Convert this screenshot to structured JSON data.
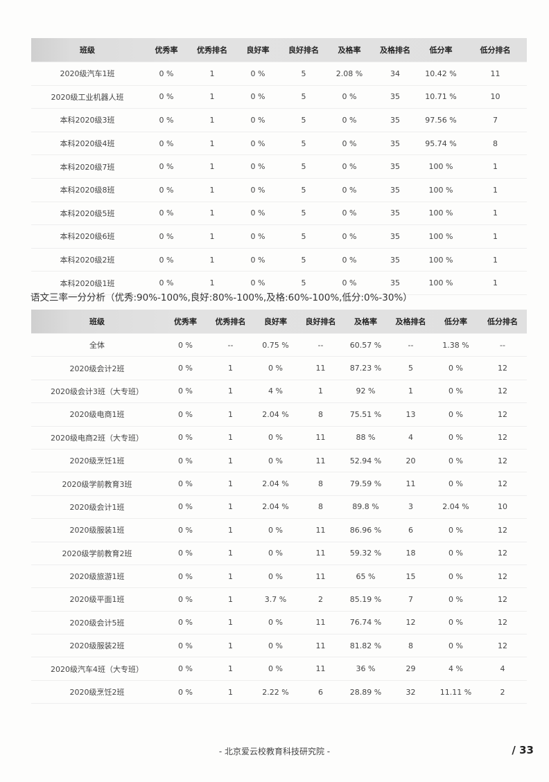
{
  "headers": [
    "班级",
    "优秀率",
    "优秀排名",
    "良好率",
    "良好排名",
    "及格率",
    "及格排名",
    "低分率",
    "低分排名"
  ],
  "table1": [
    [
      "2020级汽车1班",
      "0 %",
      "1",
      "0 %",
      "5",
      "2.08 %",
      "34",
      "10.42 %",
      "11"
    ],
    [
      "2020级工业机器人班",
      "0 %",
      "1",
      "0 %",
      "5",
      "0 %",
      "35",
      "10.71 %",
      "10"
    ],
    [
      "本科2020级3班",
      "0 %",
      "1",
      "0 %",
      "5",
      "0 %",
      "35",
      "97.56 %",
      "7"
    ],
    [
      "本科2020级4班",
      "0 %",
      "1",
      "0 %",
      "5",
      "0 %",
      "35",
      "95.74 %",
      "8"
    ],
    [
      "本科2020级7班",
      "0 %",
      "1",
      "0 %",
      "5",
      "0 %",
      "35",
      "100 %",
      "1"
    ],
    [
      "本科2020级8班",
      "0 %",
      "1",
      "0 %",
      "5",
      "0 %",
      "35",
      "100 %",
      "1"
    ],
    [
      "本科2020级5班",
      "0 %",
      "1",
      "0 %",
      "5",
      "0 %",
      "35",
      "100 %",
      "1"
    ],
    [
      "本科2020级6班",
      "0 %",
      "1",
      "0 %",
      "5",
      "0 %",
      "35",
      "100 %",
      "1"
    ],
    [
      "本科2020级2班",
      "0 %",
      "1",
      "0 %",
      "5",
      "0 %",
      "35",
      "100 %",
      "1"
    ],
    [
      "本科2020级1班",
      "0 %",
      "1",
      "0 %",
      "5",
      "0 %",
      "35",
      "100 %",
      "1"
    ]
  ],
  "section_title": "语文三率一分分析（优秀:90%-100%,良好:80%-100%,及格:60%-100%,低分:0%-30%）",
  "table2": [
    [
      "全体",
      "0 %",
      "--",
      "0.75 %",
      "--",
      "60.57 %",
      "--",
      "1.38 %",
      "--"
    ],
    [
      "2020级会计2班",
      "0 %",
      "1",
      "0 %",
      "11",
      "87.23 %",
      "5",
      "0 %",
      "12"
    ],
    [
      "2020级会计3班（大专班）",
      "0 %",
      "1",
      "4 %",
      "1",
      "92 %",
      "1",
      "0 %",
      "12"
    ],
    [
      "2020级电商1班",
      "0 %",
      "1",
      "2.04 %",
      "8",
      "75.51 %",
      "13",
      "0 %",
      "12"
    ],
    [
      "2020级电商2班（大专班）",
      "0 %",
      "1",
      "0 %",
      "11",
      "88 %",
      "4",
      "0 %",
      "12"
    ],
    [
      "2020级烹饪1班",
      "0 %",
      "1",
      "0 %",
      "11",
      "52.94 %",
      "20",
      "0 %",
      "12"
    ],
    [
      "2020级学前教育3班",
      "0 %",
      "1",
      "2.04 %",
      "8",
      "79.59 %",
      "11",
      "0 %",
      "12"
    ],
    [
      "2020级会计1班",
      "0 %",
      "1",
      "2.04 %",
      "8",
      "89.8 %",
      "3",
      "2.04 %",
      "10"
    ],
    [
      "2020级服装1班",
      "0 %",
      "1",
      "0 %",
      "11",
      "86.96 %",
      "6",
      "0 %",
      "12"
    ],
    [
      "2020级学前教育2班",
      "0 %",
      "1",
      "0 %",
      "11",
      "59.32 %",
      "18",
      "0 %",
      "12"
    ],
    [
      "2020级旅游1班",
      "0 %",
      "1",
      "0 %",
      "11",
      "65 %",
      "15",
      "0 %",
      "12"
    ],
    [
      "2020级平面1班",
      "0 %",
      "1",
      "3.7 %",
      "2",
      "85.19 %",
      "7",
      "0 %",
      "12"
    ],
    [
      "2020级会计5班",
      "0 %",
      "1",
      "0 %",
      "11",
      "76.74 %",
      "12",
      "0 %",
      "12"
    ],
    [
      "2020级服装2班",
      "0 %",
      "1",
      "0 %",
      "11",
      "81.82 %",
      "8",
      "0 %",
      "12"
    ],
    [
      "2020级汽车4班（大专班）",
      "0 %",
      "1",
      "0 %",
      "11",
      "36 %",
      "29",
      "4 %",
      "4"
    ],
    [
      "2020级烹饪2班",
      "0 %",
      "1",
      "2.22 %",
      "6",
      "28.89 %",
      "32",
      "11.11 %",
      "2"
    ]
  ],
  "footer": "- 北京爱云校教育科技研究院 -",
  "page_number": "/ 33"
}
